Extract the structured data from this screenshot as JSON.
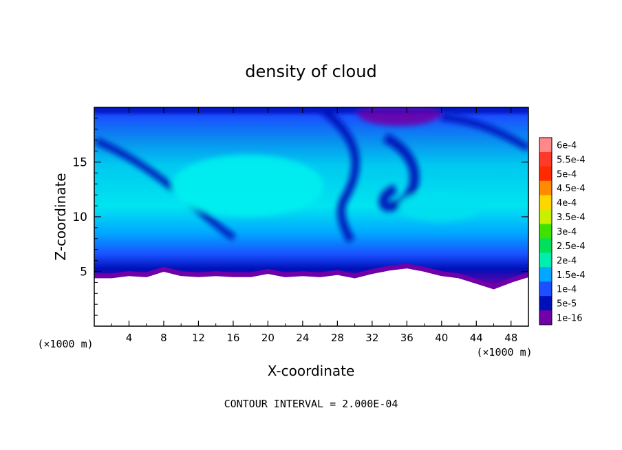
{
  "chart_data": {
    "type": "heatmap",
    "title": "density of cloud",
    "xlabel": "X-coordinate",
    "ylabel": "Z-coordinate",
    "x_unit": "(×1000 m)",
    "y_unit": "(×1000 m)",
    "xlim": [
      0,
      50
    ],
    "ylim": [
      0,
      20
    ],
    "x_ticks": [
      "4",
      "8",
      "12",
      "16",
      "20",
      "24",
      "28",
      "32",
      "36",
      "40",
      "44",
      "48"
    ],
    "y_ticks": [
      "5",
      "10",
      "15"
    ],
    "footer": "CONTOUR INTERVAL = 2.000E-04",
    "colorbar": {
      "levels": [
        "6e-4",
        "5.5e-4",
        "5e-4",
        "4.5e-4",
        "4e-4",
        "3.5e-4",
        "3e-4",
        "2.5e-4",
        "2e-4",
        "1.5e-4",
        "1e-4",
        "5e-5",
        "1e-16"
      ],
      "colors": [
        "#ff8888",
        "#ff3a2a",
        "#ff2a00",
        "#ff8c00",
        "#ffd700",
        "#c8f000",
        "#40e000",
        "#00e05a",
        "#00eeb0",
        "#00a8ff",
        "#1a50ff",
        "#0010b8",
        "#7000a8"
      ]
    },
    "cloud_field": {
      "cloud_base_km": [
        4.6,
        4.6,
        4.8,
        4.7,
        5.2,
        4.8,
        4.7,
        4.8,
        4.7,
        4.7,
        5.0,
        4.7,
        4.8,
        4.7,
        4.9,
        4.6,
        5.0,
        5.3,
        5.5,
        5.2,
        4.8,
        4.6,
        4.1,
        3.6,
        4.2,
        4.7
      ],
      "cloud_top_km": 20,
      "dominant_level": "1.5e-4 to 2e-4",
      "low_density_regions": [
        {
          "description": "top near x=32-36",
          "level": "1e-16"
        },
        {
          "description": "thin band along cloud base",
          "level": "1e-16"
        }
      ]
    }
  }
}
